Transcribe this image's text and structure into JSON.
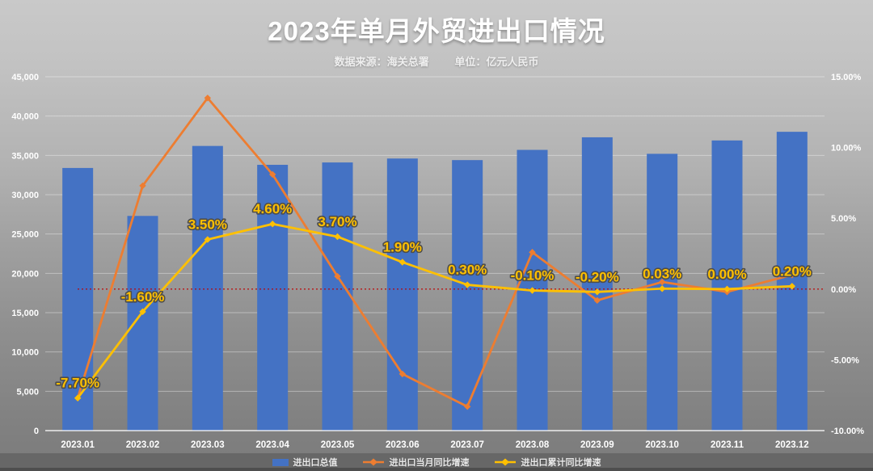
{
  "header": {
    "title": "2023年单月外贸进出口情况",
    "subtitle_source": "数据来源：海关总署",
    "subtitle_unit": "单位：亿元人民币"
  },
  "chart_data": {
    "type": "combo-bar-line",
    "categories": [
      "2023.01",
      "2023.02",
      "2023.03",
      "2023.04",
      "2023.05",
      "2023.06",
      "2023.07",
      "2023.08",
      "2023.09",
      "2023.10",
      "2023.11",
      "2023.12"
    ],
    "series": [
      {
        "name": "进出口总值",
        "type": "bar",
        "axis": "left",
        "color": "#4472C4",
        "values": [
          33400,
          27300,
          36200,
          33800,
          34100,
          34600,
          34400,
          35700,
          37300,
          35200,
          36900,
          38000
        ]
      },
      {
        "name": "进出口当月同比增速",
        "type": "line",
        "axis": "right",
        "color": "#ED7D31",
        "values": [
          -7.7,
          7.3,
          13.5,
          8.1,
          0.9,
          -6.0,
          -8.3,
          2.6,
          -0.8,
          0.5,
          -0.2,
          1.0
        ]
      },
      {
        "name": "进出口累计同比增速",
        "type": "line",
        "axis": "right",
        "color": "#FFC000",
        "values": [
          -7.7,
          -1.6,
          3.5,
          4.6,
          3.7,
          1.9,
          0.3,
          -0.1,
          -0.2,
          0.03,
          0.0,
          0.2
        ],
        "point_labels": [
          "-7.70%",
          "-1.60%",
          "3.50%",
          "4.60%",
          "3.70%",
          "1.90%",
          "0.30%",
          "-0.10%",
          "-0.20%",
          "0.03%",
          "0.00%",
          "0.20%"
        ]
      }
    ],
    "left_axis": {
      "min": 0,
      "max": 45000,
      "step": 5000,
      "ticks": [
        "0",
        "5,000",
        "10,000",
        "15,000",
        "20,000",
        "25,000",
        "30,000",
        "35,000",
        "40,000",
        "45,000"
      ]
    },
    "right_axis": {
      "min": -10,
      "max": 15,
      "step": 5,
      "ticks": [
        "-10.00%",
        "-5.00%",
        "0.00%",
        "5.00%",
        "10.00%",
        "15.00%"
      ]
    },
    "zero_line": {
      "value": 0,
      "color": "#C00000",
      "style": "dotted"
    },
    "grid": true,
    "legend_position": "bottom",
    "colors": {
      "grid": "rgba(255,255,255,0.38)",
      "axis_text": "#ffffff",
      "data_label": "#FFC000"
    }
  }
}
